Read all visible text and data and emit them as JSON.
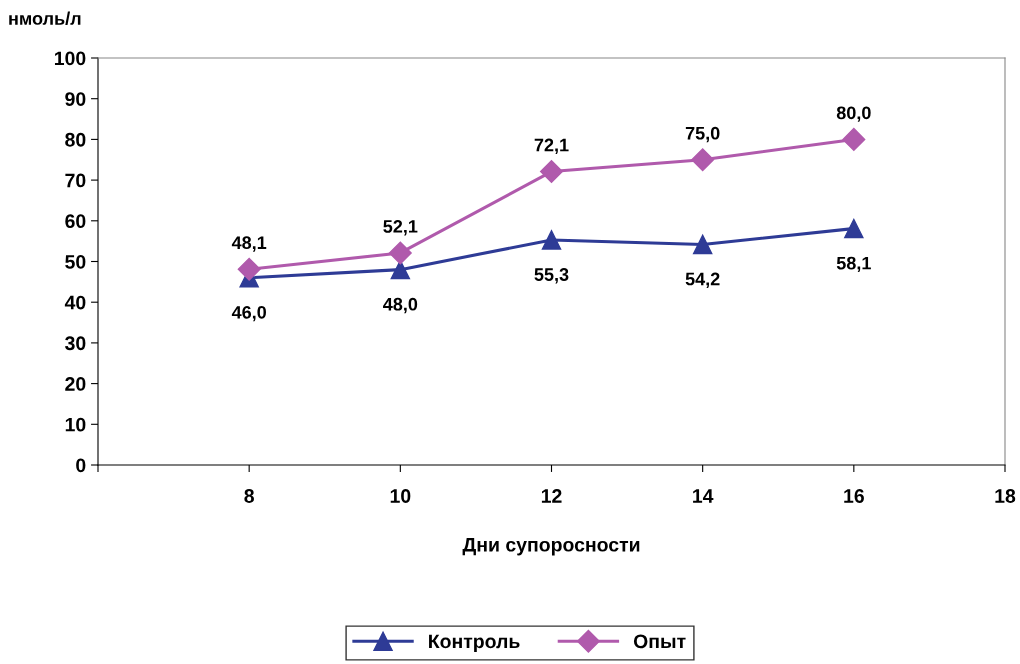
{
  "chart_data": {
    "type": "line",
    "ylabel": "нмоль/л",
    "xlabel": "Дни супоросности",
    "x": [
      8,
      10,
      12,
      14,
      16
    ],
    "series": [
      {
        "name": "Контроль",
        "color": "#2e3b96",
        "marker": "triangle",
        "values": [
          46.0,
          48.0,
          55.3,
          54.2,
          58.1
        ],
        "value_labels": [
          "46,0",
          "48,0",
          "55,3",
          "54,2",
          "58,1"
        ]
      },
      {
        "name": "Опыт",
        "color": "#b05aac",
        "marker": "diamond",
        "values": [
          48.1,
          52.1,
          72.1,
          75.0,
          80.0
        ],
        "value_labels": [
          "48,1",
          "52,1",
          "72,1",
          "75,0",
          "80,0"
        ]
      }
    ],
    "xlim": [
      6,
      18
    ],
    "xticks": [
      {
        "value": 6,
        "label": null
      },
      8,
      10,
      12,
      14,
      16,
      18
    ],
    "ylim": [
      0,
      100
    ],
    "yticks": [
      0,
      10,
      20,
      30,
      40,
      50,
      60,
      70,
      80,
      90,
      100
    ],
    "grid": false,
    "legend": "bottom",
    "line_style": "solid"
  }
}
